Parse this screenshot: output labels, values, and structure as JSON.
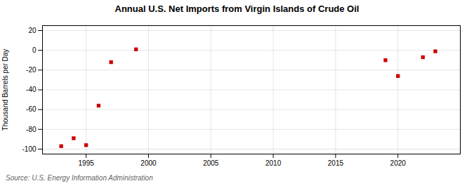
{
  "chart_data": {
    "type": "scatter",
    "title": "Annual U.S. Net Imports from Virgin Islands of Crude Oil",
    "ylabel": "Thousand Barrels per Day",
    "annotations": [
      "Source: U.S. Energy Information Administration"
    ],
    "x": [
      1993,
      1994,
      1995,
      1996,
      1997,
      1999,
      2019,
      2020,
      2022,
      2023
    ],
    "values": [
      -97,
      -89,
      -96,
      -56,
      -12,
      1,
      -10,
      -26,
      -7,
      -1
    ],
    "color": "#cc0000",
    "marker": "square",
    "xlim": [
      1991.5,
      2025
    ],
    "ylim": [
      -105,
      25
    ],
    "xticks": [
      1995,
      2000,
      2005,
      2010,
      2015,
      2020
    ],
    "yticks": [
      -100,
      -80,
      -60,
      -40,
      -20,
      0,
      20
    ],
    "grid": true
  }
}
